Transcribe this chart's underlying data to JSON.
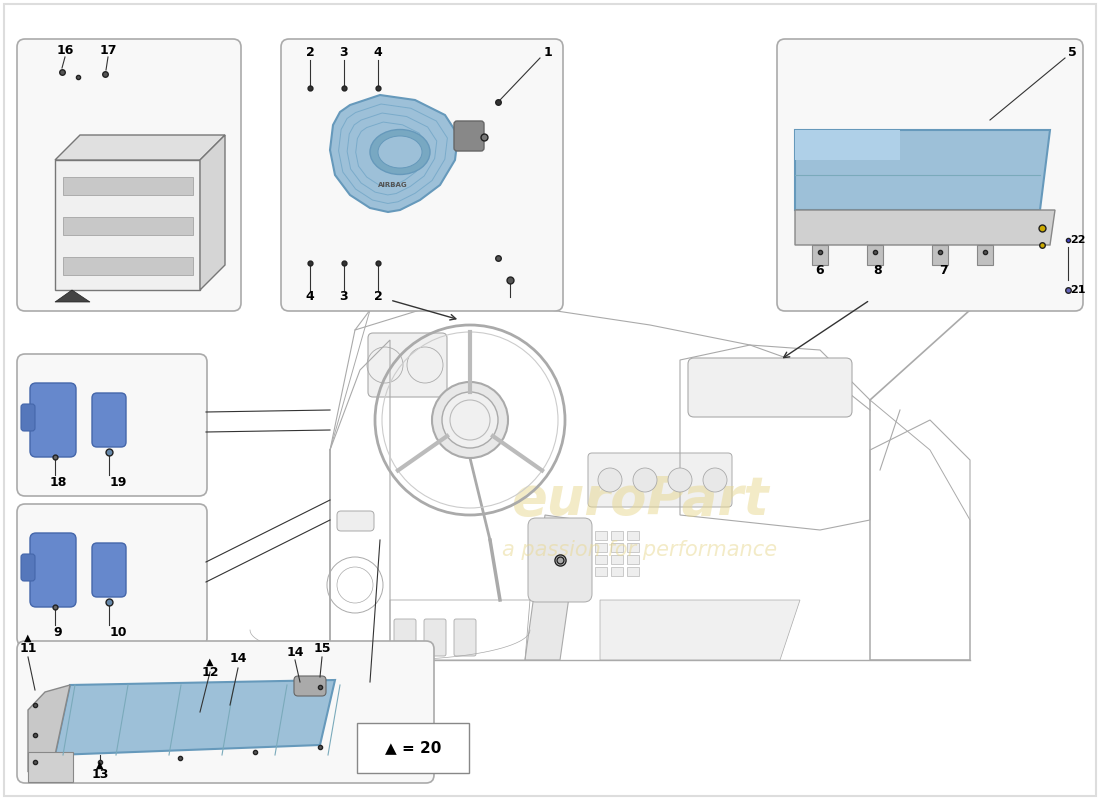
{
  "bg_color": "#ffffff",
  "box_edge": "#aaaaaa",
  "box_face": "#f8f8f8",
  "blue": "#9dc0d8",
  "blue_dk": "#6699bb",
  "gray": "#cccccc",
  "dark": "#333333",
  "line_c": "#444444",
  "car_line": "#aaaaaa",
  "watermark1": "euroPart",
  "watermark2": "a passion for performance",
  "wm_color": "#e8d890",
  "wm_alpha": 0.5
}
